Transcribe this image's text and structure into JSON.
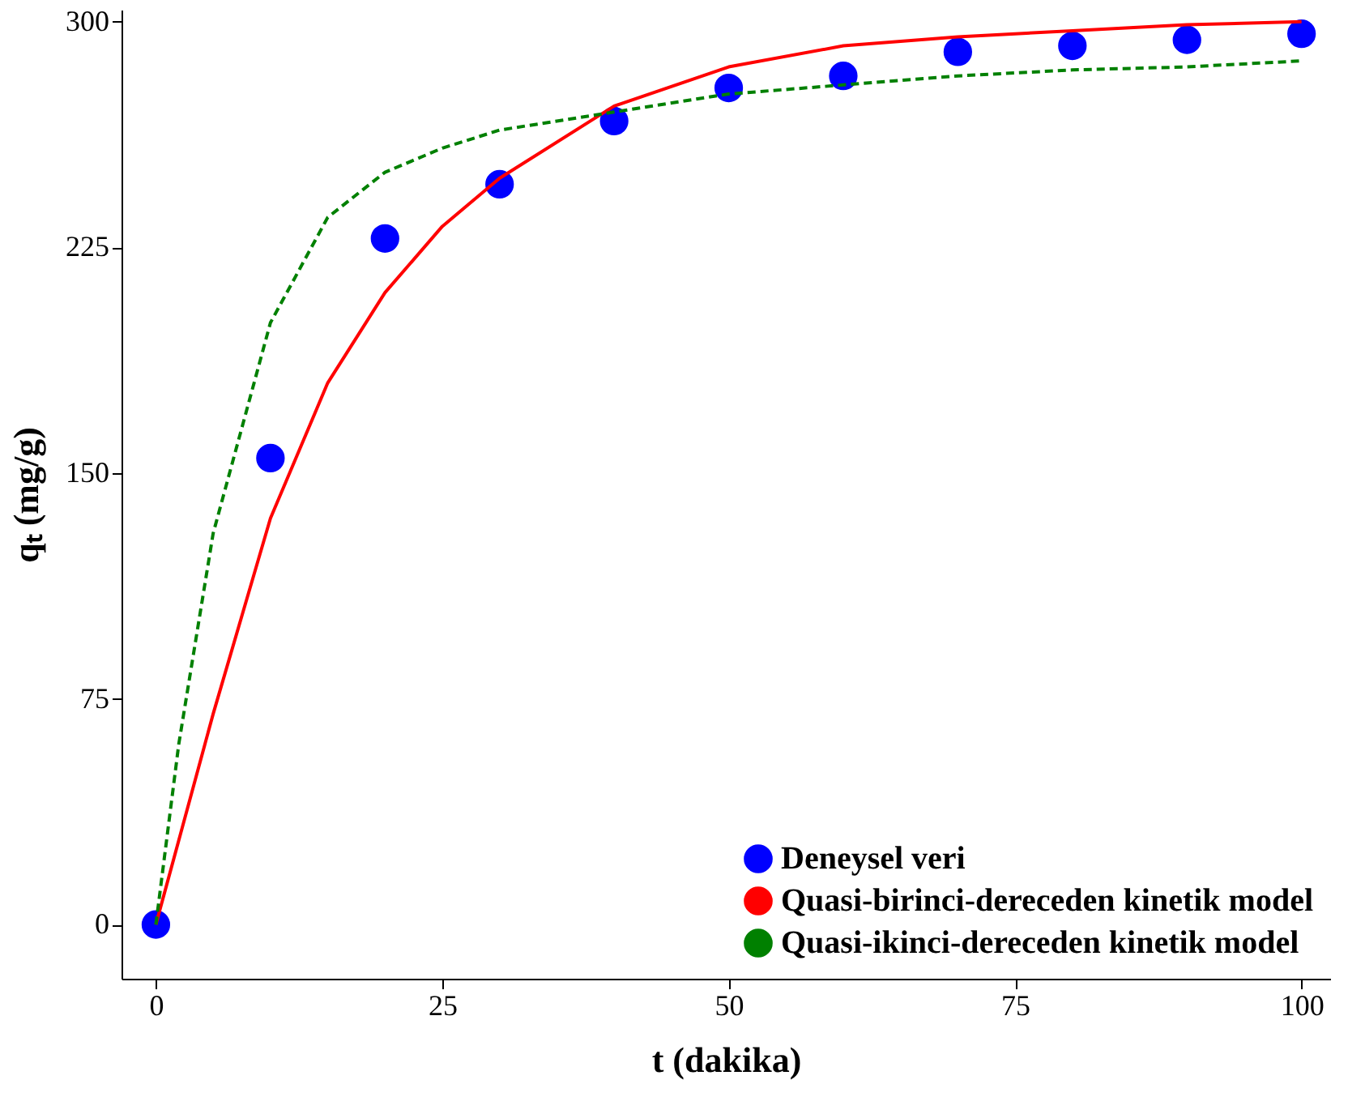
{
  "chart_data": {
    "type": "scatter",
    "xlabel": "t (dakika)",
    "ylabel": "qₜ (mg/g)",
    "xlim": [
      -3,
      102.5
    ],
    "ylim": [
      -18,
      304
    ],
    "xticks": [
      0,
      25,
      50,
      75,
      100
    ],
    "yticks": [
      0,
      75,
      150,
      225,
      300
    ],
    "grid": false,
    "legend": "bottom right",
    "series": [
      {
        "name": "Deneysel veri",
        "type": "scatter",
        "marker": "circle",
        "color": "#0000ff",
        "x": [
          0,
          10,
          20,
          30,
          40,
          50,
          60,
          70,
          80,
          90,
          100
        ],
        "values": [
          0,
          155,
          228,
          246,
          267,
          278,
          282,
          290,
          292,
          294,
          296
        ]
      },
      {
        "name": "Quasi-birinci-dereceden kinetik model",
        "type": "line",
        "line_style": "solid",
        "color": "#ff0000",
        "x": [
          0,
          5,
          10,
          15,
          20,
          25,
          30,
          40,
          50,
          60,
          70,
          80,
          90,
          100
        ],
        "values": [
          0,
          70,
          135,
          180,
          210,
          232,
          248,
          272,
          285,
          292,
          295,
          297,
          299,
          300
        ]
      },
      {
        "name": "Quasi-ikinci-dereceden kinetik model",
        "type": "line",
        "line_style": "dashed",
        "color": "#008000",
        "x": [
          0,
          2,
          5,
          10,
          15,
          20,
          25,
          30,
          40,
          50,
          60,
          70,
          80,
          90,
          100
        ],
        "values": [
          0,
          60,
          130,
          200,
          235,
          250,
          258,
          264,
          270,
          276,
          279,
          282,
          284,
          285,
          287
        ]
      }
    ]
  }
}
